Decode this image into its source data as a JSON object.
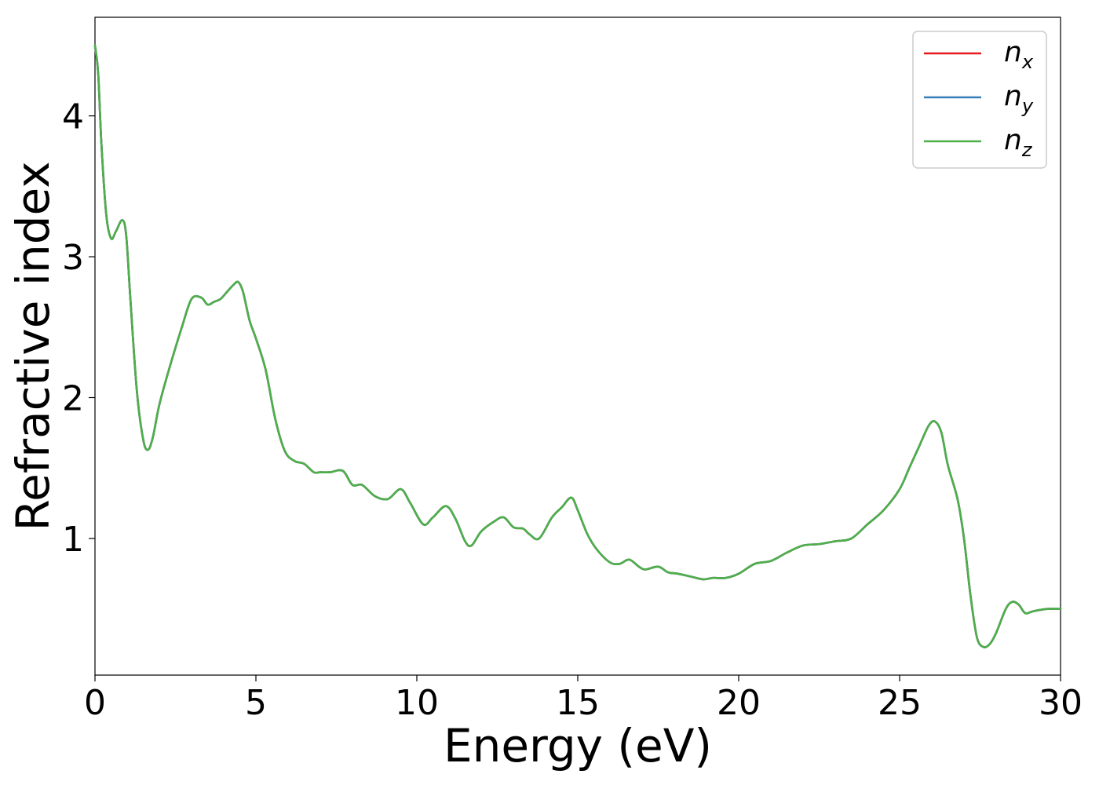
{
  "chart_data": {
    "type": "line",
    "title": "",
    "xlabel": "Energy (eV)",
    "ylabel": "Refractive index",
    "xlim": [
      0,
      30
    ],
    "ylim": [
      0.03,
      4.7
    ],
    "xticks": [
      0,
      5,
      10,
      15,
      20,
      25,
      30
    ],
    "yticks": [
      1,
      2,
      3,
      4
    ],
    "grid": false,
    "legend_position": "top-right",
    "series": [
      {
        "name": "n_x",
        "label_base": "n",
        "label_sub": "x",
        "color": "#e41a1c",
        "x": [
          0,
          0.1,
          0.2,
          0.35,
          0.5,
          0.65,
          0.85,
          0.97,
          1.1,
          1.3,
          1.5,
          1.65,
          1.8,
          2.0,
          2.3,
          2.7,
          3.0,
          3.3,
          3.5,
          3.7,
          3.9,
          4.1,
          4.3,
          4.45,
          4.6,
          4.8,
          5.0,
          5.3,
          5.6,
          5.9,
          6.2,
          6.5,
          6.8,
          7.0,
          7.3,
          7.7,
          8.0,
          8.3,
          8.7,
          9.1,
          9.5,
          9.8,
          10.2,
          10.5,
          10.9,
          11.2,
          11.5,
          11.7,
          12.0,
          12.4,
          12.7,
          13.0,
          13.3,
          13.5,
          13.8,
          14.2,
          14.5,
          14.8,
          15.0,
          15.3,
          15.6,
          16.0,
          16.3,
          16.6,
          16.9,
          17.1,
          17.5,
          17.8,
          18.1,
          18.5,
          18.9,
          19.2,
          19.6,
          20.0,
          20.5,
          21.0,
          21.5,
          22.0,
          22.5,
          23.0,
          23.5,
          24.0,
          24.5,
          25.0,
          25.3,
          25.6,
          25.9,
          26.1,
          26.3,
          26.5,
          26.8,
          27.0,
          27.2,
          27.4,
          27.6,
          27.8,
          28.0,
          28.3,
          28.5,
          28.7,
          28.9,
          29.1,
          29.3,
          29.6,
          30.0
        ],
        "y": [
          4.5,
          4.3,
          3.8,
          3.3,
          3.13,
          3.18,
          3.26,
          3.15,
          2.7,
          2.05,
          1.7,
          1.63,
          1.72,
          1.95,
          2.2,
          2.5,
          2.7,
          2.71,
          2.66,
          2.68,
          2.7,
          2.75,
          2.8,
          2.82,
          2.75,
          2.55,
          2.42,
          2.2,
          1.85,
          1.62,
          1.55,
          1.53,
          1.47,
          1.47,
          1.47,
          1.48,
          1.38,
          1.38,
          1.3,
          1.28,
          1.35,
          1.25,
          1.1,
          1.15,
          1.23,
          1.14,
          0.98,
          0.95,
          1.05,
          1.12,
          1.15,
          1.08,
          1.07,
          1.03,
          1.0,
          1.15,
          1.22,
          1.29,
          1.2,
          1.03,
          0.92,
          0.83,
          0.82,
          0.85,
          0.8,
          0.78,
          0.8,
          0.76,
          0.75,
          0.73,
          0.71,
          0.72,
          0.72,
          0.75,
          0.82,
          0.84,
          0.9,
          0.95,
          0.96,
          0.98,
          1.0,
          1.1,
          1.2,
          1.35,
          1.5,
          1.65,
          1.8,
          1.83,
          1.75,
          1.52,
          1.28,
          1.0,
          0.6,
          0.3,
          0.23,
          0.25,
          0.33,
          0.5,
          0.55,
          0.53,
          0.47,
          0.48,
          0.49,
          0.5,
          0.5
        ]
      },
      {
        "name": "n_y",
        "label_base": "n",
        "label_sub": "y",
        "color": "#377eb8",
        "x": [
          0,
          0.1,
          0.2,
          0.35,
          0.5,
          0.65,
          0.85,
          0.97,
          1.1,
          1.3,
          1.5,
          1.65,
          1.8,
          2.0,
          2.3,
          2.7,
          3.0,
          3.3,
          3.5,
          3.7,
          3.9,
          4.1,
          4.3,
          4.45,
          4.6,
          4.8,
          5.0,
          5.3,
          5.6,
          5.9,
          6.2,
          6.5,
          6.8,
          7.0,
          7.3,
          7.7,
          8.0,
          8.3,
          8.7,
          9.1,
          9.5,
          9.8,
          10.2,
          10.5,
          10.9,
          11.2,
          11.5,
          11.7,
          12.0,
          12.4,
          12.7,
          13.0,
          13.3,
          13.5,
          13.8,
          14.2,
          14.5,
          14.8,
          15.0,
          15.3,
          15.6,
          16.0,
          16.3,
          16.6,
          16.9,
          17.1,
          17.5,
          17.8,
          18.1,
          18.5,
          18.9,
          19.2,
          19.6,
          20.0,
          20.5,
          21.0,
          21.5,
          22.0,
          22.5,
          23.0,
          23.5,
          24.0,
          24.5,
          25.0,
          25.3,
          25.6,
          25.9,
          26.1,
          26.3,
          26.5,
          26.8,
          27.0,
          27.2,
          27.4,
          27.6,
          27.8,
          28.0,
          28.3,
          28.5,
          28.7,
          28.9,
          29.1,
          29.3,
          29.6,
          30.0
        ],
        "y": [
          4.5,
          4.3,
          3.8,
          3.3,
          3.13,
          3.18,
          3.26,
          3.15,
          2.7,
          2.05,
          1.7,
          1.63,
          1.72,
          1.95,
          2.2,
          2.5,
          2.7,
          2.71,
          2.66,
          2.68,
          2.7,
          2.75,
          2.8,
          2.82,
          2.75,
          2.55,
          2.42,
          2.2,
          1.85,
          1.62,
          1.55,
          1.53,
          1.47,
          1.47,
          1.47,
          1.48,
          1.38,
          1.38,
          1.3,
          1.28,
          1.35,
          1.25,
          1.1,
          1.15,
          1.23,
          1.14,
          0.98,
          0.95,
          1.05,
          1.12,
          1.15,
          1.08,
          1.07,
          1.03,
          1.0,
          1.15,
          1.22,
          1.29,
          1.2,
          1.03,
          0.92,
          0.83,
          0.82,
          0.85,
          0.8,
          0.78,
          0.8,
          0.76,
          0.75,
          0.73,
          0.71,
          0.72,
          0.72,
          0.75,
          0.82,
          0.84,
          0.9,
          0.95,
          0.96,
          0.98,
          1.0,
          1.1,
          1.2,
          1.35,
          1.5,
          1.65,
          1.8,
          1.83,
          1.75,
          1.52,
          1.28,
          1.0,
          0.6,
          0.3,
          0.23,
          0.25,
          0.33,
          0.5,
          0.55,
          0.53,
          0.47,
          0.48,
          0.49,
          0.5,
          0.5
        ]
      },
      {
        "name": "n_z",
        "label_base": "n",
        "label_sub": "z",
        "color": "#4daf4a",
        "x": [
          0,
          0.1,
          0.2,
          0.35,
          0.5,
          0.65,
          0.85,
          0.97,
          1.1,
          1.3,
          1.5,
          1.65,
          1.8,
          2.0,
          2.3,
          2.7,
          3.0,
          3.3,
          3.5,
          3.7,
          3.9,
          4.1,
          4.3,
          4.45,
          4.6,
          4.8,
          5.0,
          5.3,
          5.6,
          5.9,
          6.2,
          6.5,
          6.8,
          7.0,
          7.3,
          7.7,
          8.0,
          8.3,
          8.7,
          9.1,
          9.5,
          9.8,
          10.2,
          10.5,
          10.9,
          11.2,
          11.5,
          11.7,
          12.0,
          12.4,
          12.7,
          13.0,
          13.3,
          13.5,
          13.8,
          14.2,
          14.5,
          14.8,
          15.0,
          15.3,
          15.6,
          16.0,
          16.3,
          16.6,
          16.9,
          17.1,
          17.5,
          17.8,
          18.1,
          18.5,
          18.9,
          19.2,
          19.6,
          20.0,
          20.5,
          21.0,
          21.5,
          22.0,
          22.5,
          23.0,
          23.5,
          24.0,
          24.5,
          25.0,
          25.3,
          25.6,
          25.9,
          26.1,
          26.3,
          26.5,
          26.8,
          27.0,
          27.2,
          27.4,
          27.6,
          27.8,
          28.0,
          28.3,
          28.5,
          28.7,
          28.9,
          29.1,
          29.3,
          29.6,
          30.0
        ],
        "y": [
          4.5,
          4.3,
          3.8,
          3.3,
          3.13,
          3.18,
          3.26,
          3.15,
          2.7,
          2.05,
          1.7,
          1.63,
          1.72,
          1.95,
          2.2,
          2.5,
          2.7,
          2.71,
          2.66,
          2.68,
          2.7,
          2.75,
          2.8,
          2.82,
          2.75,
          2.55,
          2.42,
          2.2,
          1.85,
          1.62,
          1.55,
          1.53,
          1.47,
          1.47,
          1.47,
          1.48,
          1.38,
          1.38,
          1.3,
          1.28,
          1.35,
          1.25,
          1.1,
          1.15,
          1.23,
          1.14,
          0.98,
          0.95,
          1.05,
          1.12,
          1.15,
          1.08,
          1.07,
          1.03,
          1.0,
          1.15,
          1.22,
          1.29,
          1.2,
          1.03,
          0.92,
          0.83,
          0.82,
          0.85,
          0.8,
          0.78,
          0.8,
          0.76,
          0.75,
          0.73,
          0.71,
          0.72,
          0.72,
          0.75,
          0.82,
          0.84,
          0.9,
          0.95,
          0.96,
          0.98,
          1.0,
          1.1,
          1.2,
          1.35,
          1.5,
          1.65,
          1.8,
          1.83,
          1.75,
          1.52,
          1.28,
          1.0,
          0.6,
          0.3,
          0.23,
          0.25,
          0.33,
          0.5,
          0.55,
          0.53,
          0.47,
          0.48,
          0.49,
          0.5,
          0.5
        ]
      }
    ]
  }
}
